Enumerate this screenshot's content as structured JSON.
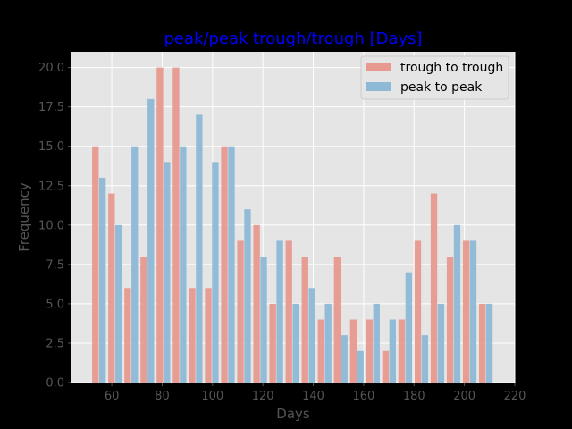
{
  "chart_data": {
    "type": "bar",
    "title": "peak/peak trough/trough [Days]",
    "xlabel": "Days",
    "ylabel": "Frequency",
    "xlim": [
      44,
      220
    ],
    "ylim": [
      0,
      21
    ],
    "xticks": [
      60,
      80,
      100,
      120,
      140,
      160,
      180,
      200,
      220
    ],
    "yticks": [
      0.0,
      2.5,
      5.0,
      7.5,
      10.0,
      12.5,
      15.0,
      17.5,
      20.0
    ],
    "grid": true,
    "legend_position": "top-right",
    "series": [
      {
        "name": "trough to trough",
        "color": "#e8998f",
        "x": [
          53.5,
          59.9,
          66.3,
          72.7,
          79.1,
          85.5,
          91.9,
          98.3,
          104.7,
          111.1,
          117.5,
          123.9,
          130.3,
          136.7,
          143.1,
          149.5,
          155.9,
          162.3,
          168.7,
          175.1,
          181.5,
          187.9,
          194.3,
          200.7,
          207.1
        ],
        "values": [
          15,
          12,
          6,
          8,
          20,
          20,
          6,
          6,
          15,
          9,
          10,
          5,
          9,
          8,
          4,
          8,
          4,
          4,
          2,
          4,
          9,
          12,
          8,
          9,
          5
        ]
      },
      {
        "name": "peak to peak",
        "color": "#8db8d6",
        "x": [
          56.3,
          62.7,
          69.1,
          75.5,
          81.9,
          88.3,
          94.7,
          101.1,
          107.5,
          113.9,
          120.3,
          126.7,
          133.1,
          139.5,
          145.9,
          152.3,
          158.7,
          165.1,
          171.5,
          177.9,
          184.3,
          190.7,
          197.1,
          203.5,
          209.9
        ],
        "values": [
          13,
          10,
          15,
          18,
          14,
          15,
          17,
          14,
          15,
          11,
          8,
          9,
          5,
          6,
          5,
          3,
          2,
          5,
          4,
          7,
          3,
          5,
          10,
          9,
          5
        ]
      }
    ]
  }
}
